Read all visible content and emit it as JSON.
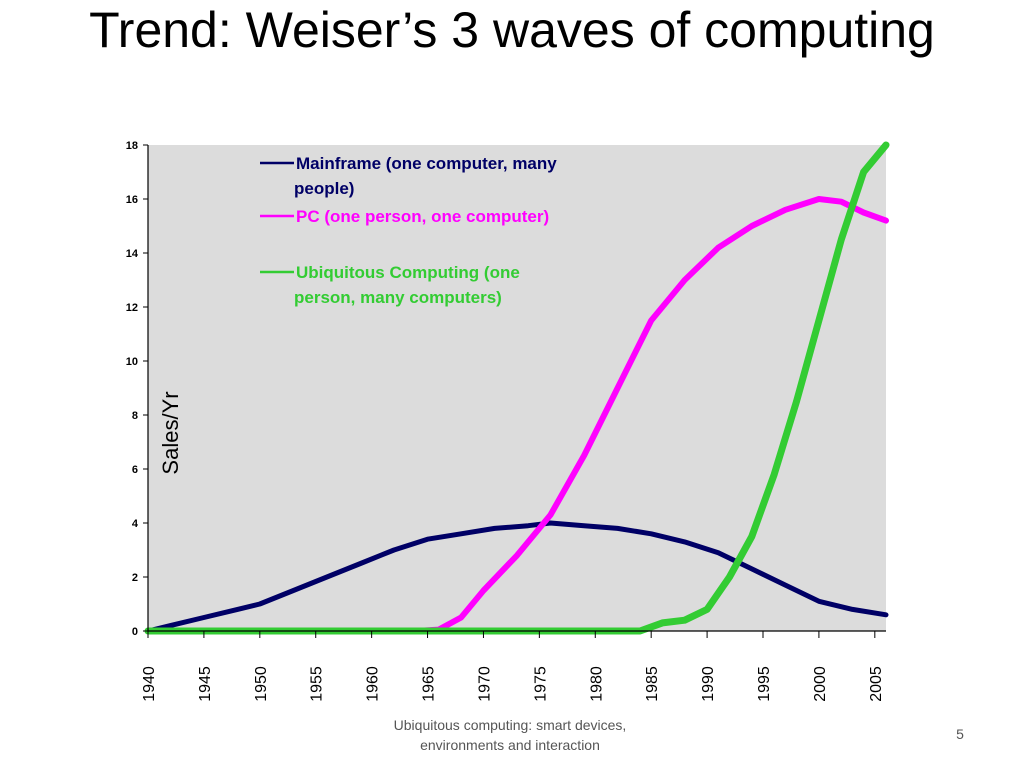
{
  "slide": {
    "title": "Trend: Weiser’s 3 waves of computing",
    "footer_line1": "Ubiquitous computing: smart devices,",
    "footer_line2": "environments and interaction",
    "page_number": "5"
  },
  "chart_data": {
    "type": "line",
    "title": "",
    "xlabel": "",
    "ylabel": "Sales/Yr",
    "xlim": [
      1940,
      2006
    ],
    "ylim": [
      0,
      18
    ],
    "x_ticks": [
      "1940",
      "1945",
      "1950",
      "1955",
      "1960",
      "1965",
      "1970",
      "1975",
      "1980",
      "1985",
      "1990",
      "1995",
      "2000",
      "2005"
    ],
    "y_ticks": [
      "0",
      "2",
      "4",
      "6",
      "8",
      "10",
      "12",
      "14",
      "16",
      "18"
    ],
    "grid": false,
    "legend_position": "top-left",
    "colors": {
      "plot_background": "#dcdcdc",
      "mainframe": "#000066",
      "pc": "#ff00ff",
      "ubiquitous": "#33cc33"
    },
    "series": [
      {
        "name": "Mainframe (one computer, many people)",
        "legend_lines": [
          "Mainframe (one computer, many",
          "people)"
        ],
        "color": "#000066",
        "x": [
          1940,
          1942,
          1945,
          1948,
          1950,
          1953,
          1956,
          1959,
          1962,
          1965,
          1968,
          1971,
          1974,
          1976,
          1979,
          1982,
          1985,
          1988,
          1991,
          1994,
          1997,
          2000,
          2003,
          2006
        ],
        "y": [
          0,
          0.2,
          0.5,
          0.8,
          1.0,
          1.5,
          2.0,
          2.5,
          3.0,
          3.4,
          3.6,
          3.8,
          3.9,
          4.0,
          3.9,
          3.8,
          3.6,
          3.3,
          2.9,
          2.3,
          1.7,
          1.1,
          0.8,
          0.6
        ]
      },
      {
        "name": "PC (one person, one computer)",
        "legend_lines": [
          "PC (one person, one computer)"
        ],
        "color": "#ff00ff",
        "x": [
          1940,
          1964,
          1966,
          1968,
          1970,
          1973,
          1976,
          1979,
          1982,
          1985,
          1988,
          1991,
          1994,
          1997,
          2000,
          2002,
          2004,
          2006
        ],
        "y": [
          0,
          0,
          0.05,
          0.5,
          1.5,
          2.8,
          4.3,
          6.5,
          9.0,
          11.5,
          13.0,
          14.2,
          15.0,
          15.6,
          16.0,
          15.9,
          15.5,
          15.2
        ]
      },
      {
        "name": "Ubiquitous Computing (one person, many computers)",
        "legend_lines": [
          "Ubiquitous Computing (one",
          "person, many computers)"
        ],
        "color": "#33cc33",
        "x": [
          1940,
          1984,
          1986,
          1988,
          1990,
          1992,
          1994,
          1996,
          1998,
          2000,
          2002,
          2004,
          2006
        ],
        "y": [
          0,
          0,
          0.3,
          0.4,
          0.8,
          2.0,
          3.5,
          5.8,
          8.5,
          11.5,
          14.5,
          17.0,
          18.0
        ]
      }
    ]
  }
}
